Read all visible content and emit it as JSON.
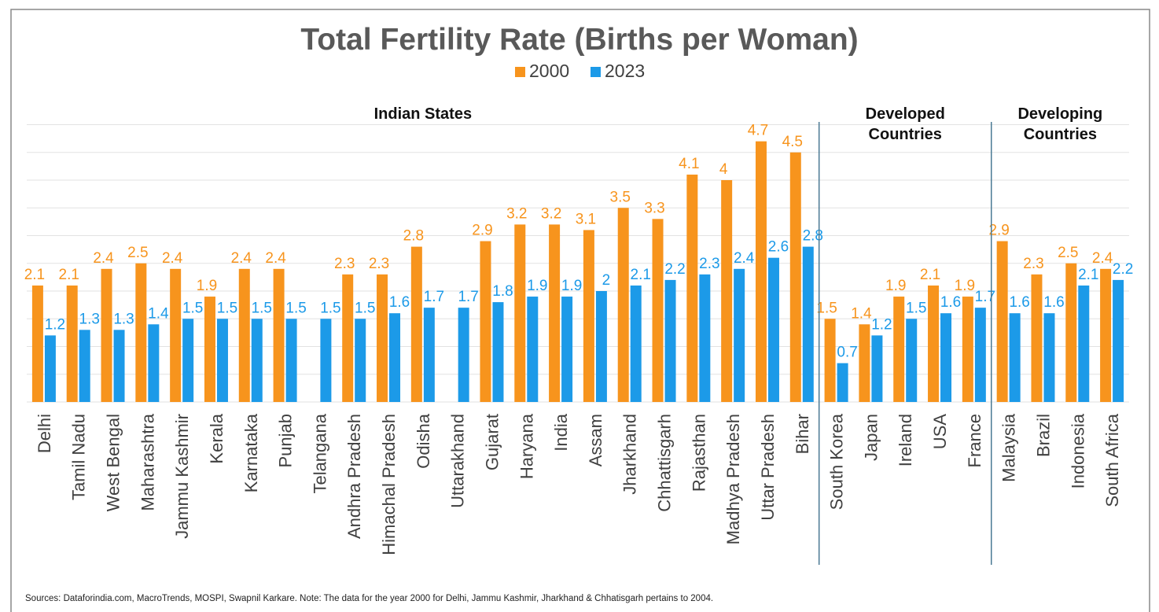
{
  "chart_data": {
    "type": "bar",
    "title": "Total Fertility Rate (Births per Woman)",
    "ylim": [
      0,
      5
    ],
    "grid": true,
    "legend_position": "top-center",
    "categories": [
      "Delhi",
      "Tamil Nadu",
      "West Bengal",
      "Maharashtra",
      "Jammu Kashmir",
      "Kerala",
      "Karnataka",
      "Punjab",
      "Telangana",
      "Andhra Pradesh",
      "Himachal Pradesh",
      "Odisha",
      "Uttarakhand",
      "Gujarat",
      "Haryana",
      "India",
      "Assam",
      "Jharkhand",
      "Chhattisgarh",
      "Rajasthan",
      "Madhya Pradesh",
      "Uttar Pradesh",
      "Bihar",
      "South Korea",
      "Japan",
      "Ireland",
      "USA",
      "France",
      "Malaysia",
      "Brazil",
      "Indonesia",
      "South Africa"
    ],
    "series": [
      {
        "name": "2000",
        "color": "#F7941D",
        "values": [
          2.1,
          2.1,
          2.4,
          2.5,
          2.4,
          1.9,
          2.4,
          2.4,
          null,
          2.3,
          2.3,
          2.8,
          null,
          2.9,
          3.2,
          3.2,
          3.1,
          3.5,
          3.3,
          4.1,
          4,
          4.7,
          4.5,
          1.5,
          1.4,
          1.9,
          2.1,
          1.9,
          2.9,
          2.3,
          2.5,
          2.4
        ],
        "labels": [
          "2.1",
          "2.1",
          "2.4",
          "2.5",
          "2.4",
          "1.9",
          "2.4",
          "2.4",
          "",
          "2.3",
          "2.3",
          "2.8",
          "",
          "2.9",
          "3.2",
          "3.2",
          "3.1",
          "3.5",
          "3.3",
          "4.1",
          "4",
          "4.7",
          "4.5",
          "1.5",
          "1.4",
          "1.9",
          "2.1",
          "1.9",
          "2.9",
          "2.3",
          "2.5",
          "2.4"
        ]
      },
      {
        "name": "2023",
        "color": "#1C9AE8",
        "values": [
          1.2,
          1.3,
          1.3,
          1.4,
          1.5,
          1.5,
          1.5,
          1.5,
          1.5,
          1.5,
          1.6,
          1.7,
          1.7,
          1.8,
          1.9,
          1.9,
          2,
          2.1,
          2.2,
          2.3,
          2.4,
          2.6,
          2.8,
          0.7,
          1.2,
          1.5,
          1.6,
          1.7,
          1.6,
          1.6,
          2.1,
          2.2
        ],
        "labels": [
          "1.2",
          "1.3",
          "1.3",
          "1.4",
          "1.5",
          "1.5",
          "1.5",
          "1.5",
          "1.5",
          "1.5",
          "1.6",
          "1.7",
          "1.7",
          "1.8",
          "1.9",
          "1.9",
          "2",
          "2.1",
          "2.2",
          "2.3",
          "2.4",
          "2.6",
          "2.8",
          "0.7",
          "1.2",
          "1.5",
          "1.6",
          "1.7",
          "1.6",
          "1.6",
          "2.1",
          "2.2"
        ]
      }
    ],
    "groups": [
      {
        "lines": [
          "Indian States"
        ],
        "start": 0,
        "end": 22
      },
      {
        "lines": [
          "Developed",
          "Countries"
        ],
        "start": 23,
        "end": 27
      },
      {
        "lines": [
          "Developing",
          "Countries"
        ],
        "start": 28,
        "end": 31
      }
    ],
    "footnote": "Sources: Dataforindia.com, MacroTrends, MOSPI, Swapnil Karkare. Note: The data for the year 2000 for Delhi, Jammu Kashmir, Jharkhand & Chhatisgarh pertains to 2004."
  }
}
